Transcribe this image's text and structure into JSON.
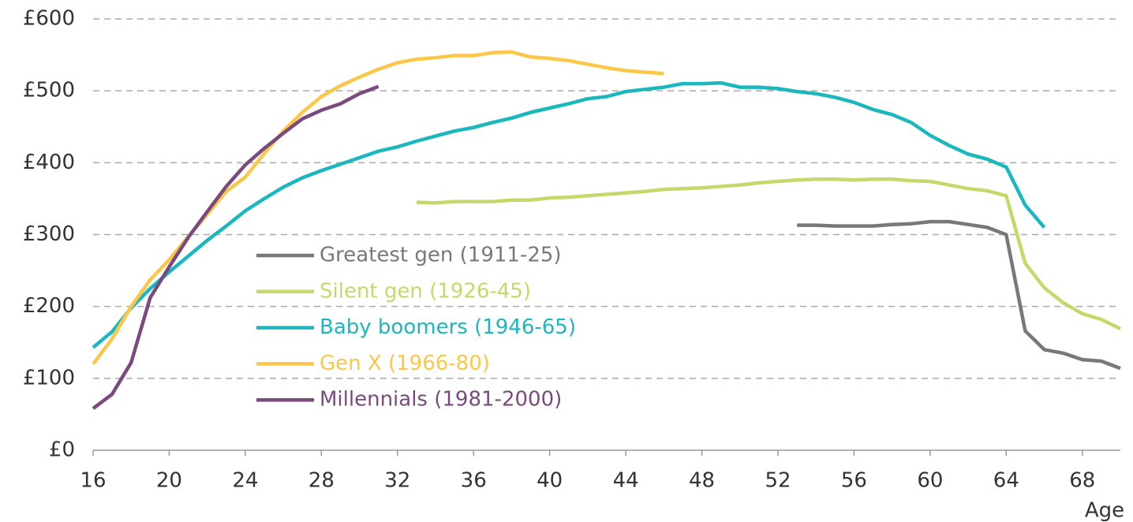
{
  "chart_data": {
    "type": "line",
    "x": [
      16,
      17,
      18,
      19,
      20,
      21,
      22,
      23,
      24,
      25,
      26,
      27,
      28,
      29,
      30,
      31,
      32,
      33,
      34,
      35,
      36,
      37,
      38,
      39,
      40,
      41,
      42,
      43,
      44,
      45,
      46,
      47,
      48,
      49,
      50,
      51,
      52,
      53,
      54,
      55,
      56,
      57,
      58,
      59,
      60,
      61,
      62,
      63,
      64,
      65,
      66,
      67,
      68,
      69,
      70
    ],
    "xlabel": "Age",
    "xlim": [
      16,
      70
    ],
    "xticks": [
      16,
      20,
      24,
      28,
      32,
      36,
      40,
      44,
      48,
      52,
      56,
      60,
      64,
      68
    ],
    "ylim": [
      0,
      600
    ],
    "yticks": [
      {
        "value": 0,
        "label": "£0"
      },
      {
        "value": 100,
        "label": "£100"
      },
      {
        "value": 200,
        "label": "£200"
      },
      {
        "value": 300,
        "label": "£300"
      },
      {
        "value": 400,
        "label": "£400"
      },
      {
        "value": 500,
        "label": "£500"
      },
      {
        "value": 600,
        "label": "£600"
      }
    ],
    "grid": true,
    "series": [
      {
        "name": "Greatest gen (1911-25)",
        "color": "#787878",
        "values": [
          null,
          null,
          null,
          null,
          null,
          null,
          null,
          null,
          null,
          null,
          null,
          null,
          null,
          null,
          null,
          null,
          null,
          null,
          null,
          null,
          null,
          null,
          null,
          null,
          null,
          null,
          null,
          null,
          null,
          null,
          null,
          null,
          null,
          null,
          null,
          null,
          null,
          313,
          313,
          312,
          312,
          312,
          314,
          315,
          318,
          318,
          314,
          310,
          300,
          166,
          140,
          135,
          126,
          124,
          114
        ]
      },
      {
        "name": "Silent gen (1926-45)",
        "color": "#c5d96b",
        "values": [
          null,
          null,
          null,
          null,
          null,
          null,
          null,
          null,
          null,
          null,
          null,
          null,
          null,
          null,
          null,
          null,
          null,
          345,
          344,
          346,
          346,
          346,
          348,
          348,
          351,
          352,
          354,
          356,
          358,
          360,
          363,
          364,
          365,
          367,
          369,
          372,
          374,
          376,
          377,
          377,
          376,
          377,
          377,
          375,
          374,
          369,
          364,
          361,
          354,
          260,
          226,
          205,
          190,
          182,
          169
        ]
      },
      {
        "name": "Baby boomers (1946-65)",
        "color": "#1ab8be",
        "values": [
          143,
          165,
          198,
          225,
          248,
          270,
          292,
          312,
          333,
          350,
          366,
          379,
          389,
          398,
          407,
          416,
          422,
          430,
          437,
          444,
          449,
          456,
          462,
          470,
          476,
          482,
          489,
          492,
          499,
          502,
          505,
          510,
          510,
          511,
          505,
          505,
          503,
          499,
          496,
          491,
          484,
          474,
          467,
          456,
          438,
          424,
          412,
          405,
          394,
          341,
          310,
          null,
          null,
          null,
          null
        ]
      },
      {
        "name": "Gen X (1966-80)",
        "color": "#fbc748",
        "values": [
          120,
          155,
          200,
          237,
          265,
          297,
          328,
          360,
          380,
          413,
          444,
          470,
          492,
          507,
          519,
          530,
          539,
          544,
          546,
          549,
          549,
          553,
          554,
          547,
          545,
          542,
          537,
          532,
          528,
          526,
          524,
          null,
          null,
          null,
          null,
          null,
          null,
          null,
          null,
          null,
          null,
          null,
          null,
          null,
          null,
          null,
          null,
          null,
          null,
          null,
          null,
          null,
          null,
          null,
          null
        ]
      },
      {
        "name": "Millennials (1981-2000)",
        "color": "#7a4a7f",
        "values": [
          58,
          78,
          122,
          212,
          255,
          296,
          332,
          367,
          397,
          420,
          441,
          461,
          473,
          482,
          496,
          506,
          null,
          null,
          null,
          null,
          null,
          null,
          null,
          null,
          null,
          null,
          null,
          null,
          null,
          null,
          null,
          null,
          null,
          null,
          null,
          null,
          null,
          null,
          null,
          null,
          null,
          null,
          null,
          null,
          null,
          null,
          null,
          null,
          null,
          null,
          null,
          null,
          null,
          null,
          null
        ]
      }
    ]
  }
}
